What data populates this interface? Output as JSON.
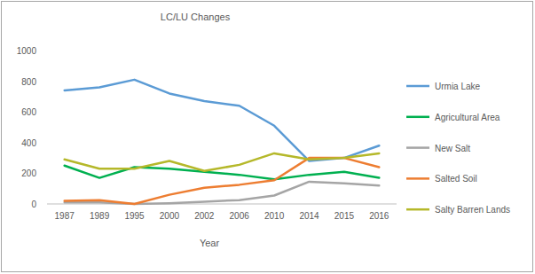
{
  "chart_data": {
    "type": "line",
    "title": "LC/LU Changes",
    "x_label": "Year",
    "categories": [
      "1987",
      "1989",
      "1995",
      "2000",
      "2002",
      "2006",
      "2010",
      "2014",
      "2015",
      "2016"
    ],
    "series": [
      {
        "name": "Urmia Lake",
        "color": "#5b9bd5",
        "values": [
          740,
          760,
          810,
          720,
          670,
          640,
          510,
          280,
          300,
          380
        ]
      },
      {
        "name": "Agricultural Area",
        "color": "#00b050",
        "values": [
          250,
          170,
          240,
          230,
          210,
          190,
          160,
          190,
          210,
          170
        ]
      },
      {
        "name": "New Salt",
        "color": "#a5a5a5",
        "values": [
          10,
          10,
          0,
          5,
          15,
          25,
          55,
          145,
          135,
          120
        ]
      },
      {
        "name": "Salted Soil",
        "color": "#ed7d31",
        "values": [
          20,
          25,
          0,
          60,
          105,
          125,
          155,
          300,
          300,
          240
        ]
      },
      {
        "name": "Salty Barren Lands",
        "color": "#b5b82a",
        "values": [
          290,
          230,
          230,
          280,
          215,
          255,
          330,
          290,
          300,
          330
        ]
      }
    ],
    "ylim": [
      0,
      1000
    ],
    "yticks": [
      0,
      200,
      400,
      600,
      800,
      1000
    ],
    "grid": false,
    "legend": "right"
  }
}
